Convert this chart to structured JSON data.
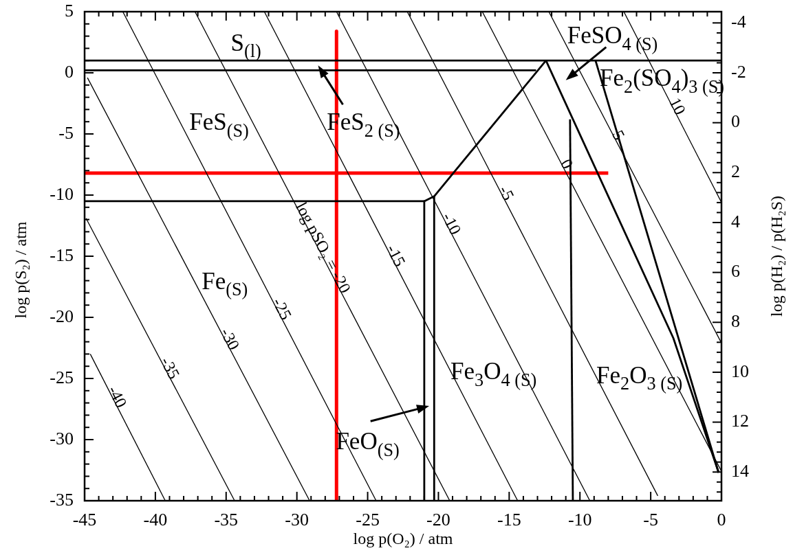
{
  "chart_data": {
    "type": "line",
    "xlabel": "log p(O₂) / atm",
    "ylabel": "log p(S₂) / atm",
    "y2label": "log p(H₂) / p(H₂S)",
    "xlim": [
      -45,
      0
    ],
    "ylim": [
      -35,
      5
    ],
    "y2lim": [
      15.15,
      -4.45
    ],
    "xticks": [
      -45,
      {
        "value": -44,
        "label": null
      },
      {
        "value": -43,
        "label": null
      },
      {
        "value": -42,
        "label": null
      },
      {
        "value": -41,
        "label": null
      },
      -40,
      {
        "value": -39,
        "label": null
      },
      {
        "value": -38,
        "label": null
      },
      {
        "value": -37,
        "label": null
      },
      {
        "value": -36,
        "label": null
      },
      -35,
      {
        "value": -34,
        "label": null
      },
      {
        "value": -33,
        "label": null
      },
      {
        "value": -32,
        "label": null
      },
      {
        "value": -31,
        "label": null
      },
      -30,
      {
        "value": -29,
        "label": null
      },
      {
        "value": -28,
        "label": null
      },
      {
        "value": -27,
        "label": null
      },
      {
        "value": -26,
        "label": null
      },
      -25,
      {
        "value": -24,
        "label": null
      },
      {
        "value": -23,
        "label": null
      },
      {
        "value": -22,
        "label": null
      },
      {
        "value": -21,
        "label": null
      },
      -20,
      {
        "value": -19,
        "label": null
      },
      {
        "value": -18,
        "label": null
      },
      {
        "value": -17,
        "label": null
      },
      {
        "value": -16,
        "label": null
      },
      -15,
      {
        "value": -14,
        "label": null
      },
      {
        "value": -13,
        "label": null
      },
      {
        "value": -12,
        "label": null
      },
      {
        "value": -11,
        "label": null
      },
      -10,
      {
        "value": -9,
        "label": null
      },
      {
        "value": -8,
        "label": null
      },
      {
        "value": -7,
        "label": null
      },
      {
        "value": -6,
        "label": null
      },
      -5,
      {
        "value": -4,
        "label": null
      },
      {
        "value": -3,
        "label": null
      },
      {
        "value": -2,
        "label": null
      },
      {
        "value": -1,
        "label": null
      },
      0
    ],
    "yticks": [
      -35,
      {
        "value": -34,
        "label": null
      },
      {
        "value": -33,
        "label": null
      },
      {
        "value": -32,
        "label": null
      },
      {
        "value": -31,
        "label": null
      },
      -30,
      {
        "value": -29,
        "label": null
      },
      {
        "value": -28,
        "label": null
      },
      {
        "value": -27,
        "label": null
      },
      {
        "value": -26,
        "label": null
      },
      -25,
      {
        "value": -24,
        "label": null
      },
      {
        "value": -23,
        "label": null
      },
      {
        "value": -22,
        "label": null
      },
      {
        "value": -21,
        "label": null
      },
      -20,
      {
        "value": -19,
        "label": null
      },
      {
        "value": -18,
        "label": null
      },
      {
        "value": -17,
        "label": null
      },
      {
        "value": -16,
        "label": null
      },
      -15,
      {
        "value": -14,
        "label": null
      },
      {
        "value": -13,
        "label": null
      },
      {
        "value": -12,
        "label": null
      },
      {
        "value": -11,
        "label": null
      },
      -10,
      {
        "value": -9,
        "label": null
      },
      {
        "value": -8,
        "label": null
      },
      {
        "value": -7,
        "label": null
      },
      {
        "value": -6,
        "label": null
      },
      -5,
      {
        "value": -4,
        "label": null
      },
      {
        "value": -3,
        "label": null
      },
      {
        "value": -2,
        "label": null
      },
      {
        "value": -1,
        "label": null
      },
      0,
      {
        "value": 1,
        "label": null
      },
      {
        "value": 2,
        "label": null
      },
      {
        "value": 3,
        "label": null
      },
      {
        "value": 4,
        "label": null
      },
      5
    ],
    "y2ticks": [
      -4,
      {
        "value": -3.6,
        "label": null
      },
      {
        "value": -3.2,
        "label": null
      },
      {
        "value": -2.8,
        "label": null
      },
      {
        "value": -2.4,
        "label": null
      },
      -2,
      {
        "value": -1.6,
        "label": null
      },
      {
        "value": -1.2,
        "label": null
      },
      {
        "value": -0.8,
        "label": null
      },
      {
        "value": -0.4,
        "label": null
      },
      0,
      {
        "value": 0.4,
        "label": null
      },
      {
        "value": 0.8,
        "label": null
      },
      {
        "value": 1.2,
        "label": null
      },
      {
        "value": 1.6,
        "label": null
      },
      2,
      {
        "value": 2.4,
        "label": null
      },
      {
        "value": 2.8,
        "label": null
      },
      {
        "value": 3.2,
        "label": null
      },
      {
        "value": 3.6,
        "label": null
      },
      4,
      {
        "value": 4.4,
        "label": null
      },
      {
        "value": 4.8,
        "label": null
      },
      {
        "value": 5.2,
        "label": null
      },
      {
        "value": 5.6,
        "label": null
      },
      6,
      {
        "value": 6.4,
        "label": null
      },
      {
        "value": 6.8,
        "label": null
      },
      {
        "value": 7.2,
        "label": null
      },
      {
        "value": 7.6,
        "label": null
      },
      8,
      {
        "value": 8.4,
        "label": null
      },
      {
        "value": 8.8,
        "label": null
      },
      {
        "value": 9.2,
        "label": null
      },
      {
        "value": 9.6,
        "label": null
      },
      10,
      {
        "value": 10.4,
        "label": null
      },
      {
        "value": 10.8,
        "label": null
      },
      {
        "value": 11.2,
        "label": null
      },
      {
        "value": 11.6,
        "label": null
      },
      12,
      {
        "value": 12.4,
        "label": null
      },
      {
        "value": 12.8,
        "label": null
      },
      {
        "value": 13.2,
        "label": null
      },
      {
        "value": 13.6,
        "label": null
      },
      14,
      {
        "value": 14.4,
        "label": null
      },
      {
        "value": 14.8,
        "label": null
      }
    ],
    "series": [
      {
        "name": "-40",
        "color": "#000000",
        "x": [
          -44.6,
          -39.3
        ],
        "values": [
          -23.0,
          -35
        ]
      },
      {
        "name": "-35",
        "color": "#000000",
        "x": [
          -44.9,
          -34.4
        ],
        "values": [
          -11.9,
          -35
        ]
      },
      {
        "name": "-30",
        "color": "#000000",
        "x": [
          -44.8,
          -29.1
        ],
        "values": [
          -0.4,
          -35
        ]
      },
      {
        "name": "-25",
        "color": "#000000",
        "x": [
          -42.3,
          -24.4
        ],
        "values": [
          5,
          -35
        ]
      },
      {
        "name": "log pSO₂ = -20",
        "color": "#000000",
        "x": [
          -37.2,
          -19.2
        ],
        "values": [
          5,
          -35
        ]
      },
      {
        "name": "-15",
        "color": "#000000",
        "x": [
          -32.3,
          -14.4
        ],
        "values": [
          5,
          -35
        ]
      },
      {
        "name": "-10",
        "color": "#000000",
        "x": [
          -27.2,
          -9.3
        ],
        "values": [
          5,
          -35
        ]
      },
      {
        "name": "-5",
        "color": "#000000",
        "x": [
          -22.2,
          -4.5
        ],
        "values": [
          5,
          -34.6
        ]
      },
      {
        "name": "0",
        "color": "#000000",
        "x": [
          -16.9,
          0
        ],
        "values": [
          5,
          -32.6
        ]
      },
      {
        "name": "5",
        "color": "#000000",
        "x": [
          -12.2,
          0
        ],
        "values": [
          5,
          -22.1
        ]
      },
      {
        "name": "10",
        "color": "#000000",
        "x": [
          -6.9,
          0
        ],
        "values": [
          5,
          -10.6
        ]
      },
      {
        "color": "#000000",
        "x": [
          -45,
          0
        ],
        "values": [
          1.0,
          1.0
        ]
      },
      {
        "color": "#000000",
        "x": [
          -45,
          -13.1
        ],
        "values": [
          0.2,
          0.2
        ]
      },
      {
        "color": "#000000",
        "x": [
          -45,
          -21.0,
          -20.3,
          -12.4
        ],
        "values": [
          -10.5,
          -10.5,
          -10.1,
          1.0
        ]
      },
      {
        "color": "#000000",
        "x": [
          -12.4,
          -3.4,
          -0.2
        ],
        "values": [
          1.0,
          -21.7,
          -32.7
        ]
      },
      {
        "color": "#000000",
        "x": [
          -8.9,
          -0.2
        ],
        "values": [
          1.0,
          -32.7
        ]
      },
      {
        "color": "#000000",
        "x": [
          -21.0,
          -21.0
        ],
        "values": [
          -10.5,
          -35
        ]
      },
      {
        "color": "#000000",
        "x": [
          -20.3,
          -20.3
        ],
        "values": [
          -10.1,
          -35
        ]
      },
      {
        "color": "#000000",
        "x": [
          -10.7,
          -10.5
        ],
        "values": [
          -3.8,
          -35
        ]
      },
      {
        "color": "#ff0000",
        "x": [
          -27.2,
          -27.2
        ],
        "values": [
          3.4,
          -35
        ]
      },
      {
        "color": "#ff0000",
        "x": [
          -45,
          -8.0
        ],
        "values": [
          -8.2,
          -8.2
        ]
      }
    ],
    "annotations": [
      "S$_{(l)}$",
      "FeS$_{(S)}$",
      "FeS$_{2 (S)}$",
      "FeSO$_{4 (S)}$",
      "Fe$_{2}$(SO$_{4}$)$_{3 (S)}$",
      "Fe$_{(S)}$",
      "FeO$_{(S)}$",
      "Fe$_{3}$O$_{4 (S)}$",
      "Fe$_{2}$O$_{3 (S)}$"
    ]
  }
}
